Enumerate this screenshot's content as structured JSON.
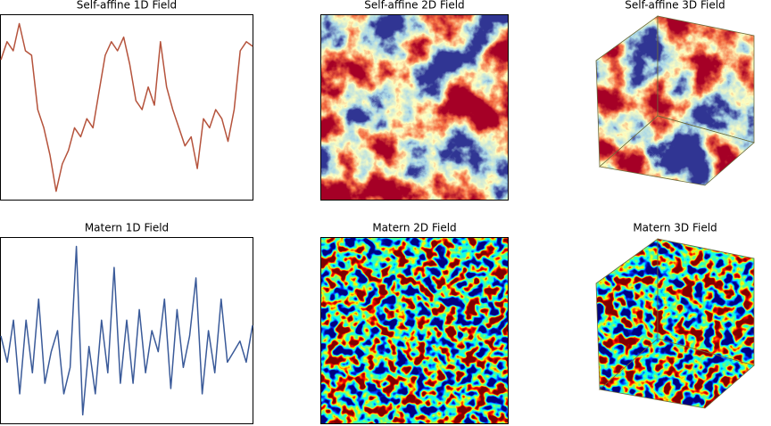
{
  "chart_data": [
    {
      "type": "line",
      "title": "Self-affine 1D Field",
      "color": "#b5533c",
      "values": [
        160,
        180,
        170,
        200,
        170,
        165,
        105,
        85,
        55,
        15,
        45,
        60,
        85,
        75,
        95,
        85,
        125,
        165,
        180,
        170,
        185,
        155,
        115,
        105,
        130,
        110,
        180,
        130,
        105,
        85,
        65,
        75,
        40,
        95,
        85,
        105,
        95,
        70,
        105,
        170,
        180,
        175
      ]
    },
    {
      "type": "heatmap",
      "title": "Self-affine 2D Field",
      "colormap": "RdYlBu"
    },
    {
      "type": "cube",
      "title": "Self-affine 3D Field",
      "colormap": "RdYlBu"
    },
    {
      "type": "line",
      "title": "Matern 1D Field",
      "color": "#3a5a99",
      "values": [
        111,
        86,
        126,
        56,
        126,
        76,
        146,
        66,
        96,
        116,
        56,
        81,
        196,
        36,
        101,
        56,
        126,
        76,
        176,
        66,
        126,
        66,
        136,
        76,
        116,
        96,
        146,
        61,
        136,
        81,
        111,
        166,
        56,
        116,
        76,
        146,
        86,
        96,
        106,
        86,
        121
      ]
    },
    {
      "type": "heatmap",
      "title": "Matern 2D Field",
      "colormap": "jet"
    },
    {
      "type": "cube",
      "title": "Matern 3D Field",
      "colormap": "jet"
    }
  ]
}
